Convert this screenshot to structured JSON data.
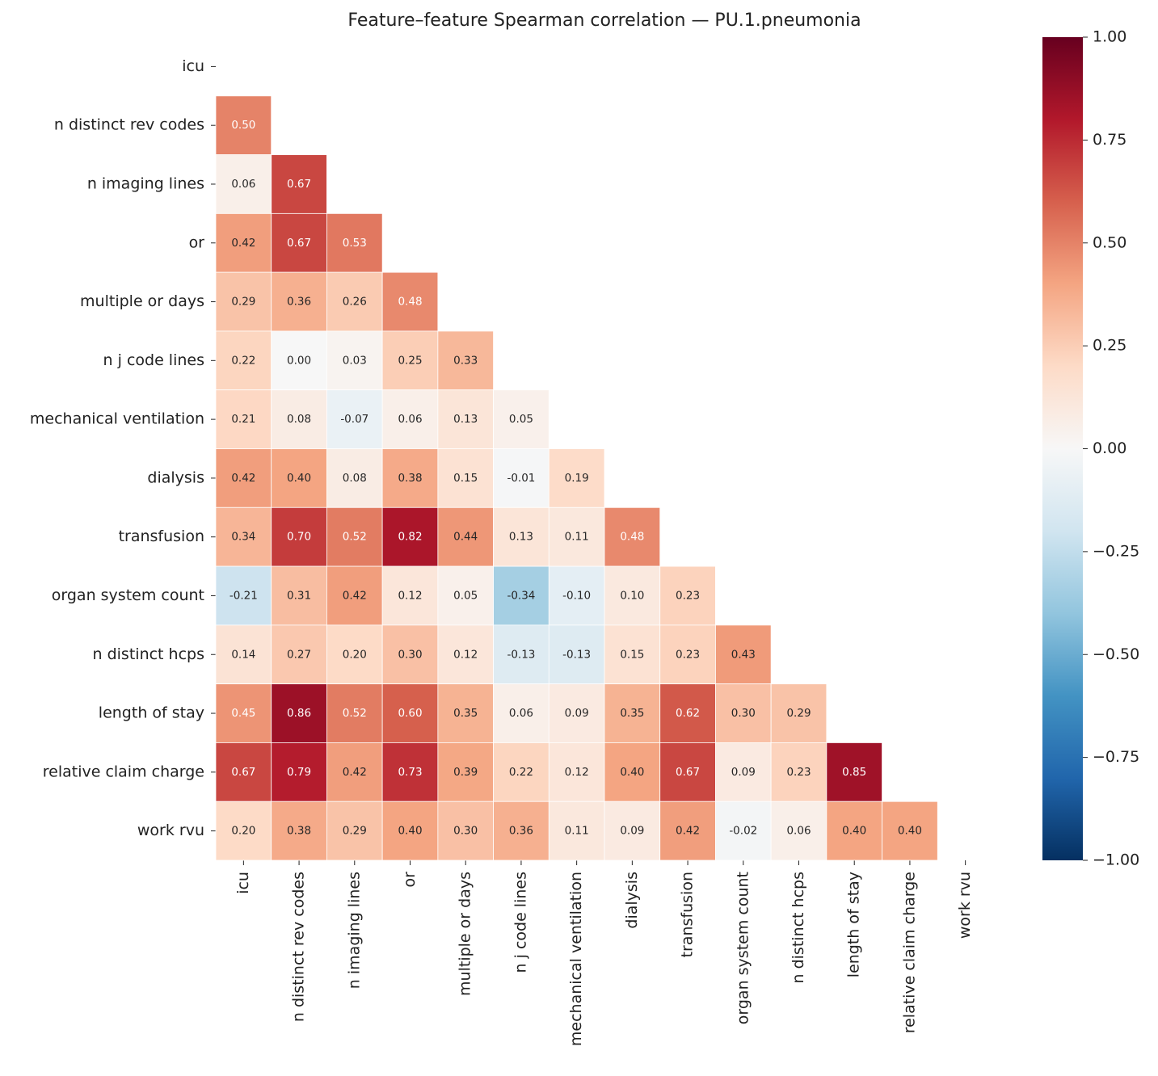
{
  "chart_data": {
    "type": "heatmap",
    "title": "Feature–feature Spearman correlation — PU.1.pneumonia",
    "categories": [
      "icu",
      "n distinct rev codes",
      "n imaging lines",
      "or",
      "multiple or days",
      "n j code lines",
      "mechanical ventilation",
      "dialysis",
      "transfusion",
      "organ system count",
      "n distinct hcps",
      "length of stay",
      "relative claim charge",
      "work rvu"
    ],
    "colormap": "RdBu_r",
    "zlim": [
      -1,
      1
    ],
    "zticks": [
      {
        "value": 1,
        "label": "1.00"
      },
      {
        "value": 0.75,
        "label": "0.75"
      },
      {
        "value": 0.5,
        "label": "0.50"
      },
      {
        "value": 0.25,
        "label": "0.25"
      },
      {
        "value": 0,
        "label": "0.00"
      },
      {
        "value": -0.25,
        "label": "−0.25"
      },
      {
        "value": -0.5,
        "label": "−0.50"
      },
      {
        "value": -0.75,
        "label": "−0.75"
      },
      {
        "value": -1,
        "label": "−1.00"
      }
    ],
    "values": [
      [
        null,
        null,
        null,
        null,
        null,
        null,
        null,
        null,
        null,
        null,
        null,
        null,
        null,
        null
      ],
      [
        0.5,
        null,
        null,
        null,
        null,
        null,
        null,
        null,
        null,
        null,
        null,
        null,
        null,
        null
      ],
      [
        0.06,
        0.67,
        null,
        null,
        null,
        null,
        null,
        null,
        null,
        null,
        null,
        null,
        null,
        null
      ],
      [
        0.42,
        0.67,
        0.53,
        null,
        null,
        null,
        null,
        null,
        null,
        null,
        null,
        null,
        null,
        null
      ],
      [
        0.29,
        0.36,
        0.26,
        0.48,
        null,
        null,
        null,
        null,
        null,
        null,
        null,
        null,
        null,
        null
      ],
      [
        0.22,
        0.0,
        0.03,
        0.25,
        0.33,
        null,
        null,
        null,
        null,
        null,
        null,
        null,
        null,
        null
      ],
      [
        0.21,
        0.08,
        -0.07,
        0.06,
        0.13,
        0.05,
        null,
        null,
        null,
        null,
        null,
        null,
        null,
        null
      ],
      [
        0.42,
        0.4,
        0.08,
        0.38,
        0.15,
        -0.01,
        0.19,
        null,
        null,
        null,
        null,
        null,
        null,
        null
      ],
      [
        0.34,
        0.7,
        0.52,
        0.82,
        0.44,
        0.13,
        0.11,
        0.48,
        null,
        null,
        null,
        null,
        null,
        null
      ],
      [
        -0.21,
        0.31,
        0.42,
        0.12,
        0.05,
        -0.34,
        -0.1,
        0.1,
        0.23,
        null,
        null,
        null,
        null,
        null
      ],
      [
        0.14,
        0.27,
        0.2,
        0.3,
        0.12,
        -0.13,
        -0.13,
        0.15,
        0.23,
        0.43,
        null,
        null,
        null,
        null
      ],
      [
        0.45,
        0.86,
        0.52,
        0.6,
        0.35,
        0.06,
        0.09,
        0.35,
        0.62,
        0.3,
        0.29,
        null,
        null,
        null
      ],
      [
        0.67,
        0.79,
        0.42,
        0.73,
        0.39,
        0.22,
        0.12,
        0.4,
        0.67,
        0.09,
        0.23,
        0.85,
        null,
        null
      ],
      [
        0.2,
        0.38,
        0.29,
        0.4,
        0.3,
        0.36,
        0.11,
        0.09,
        0.42,
        -0.02,
        0.06,
        0.4,
        0.4,
        null
      ]
    ],
    "value_labels": [
      [
        null,
        null,
        null,
        null,
        null,
        null,
        null,
        null,
        null,
        null,
        null,
        null,
        null,
        null
      ],
      [
        "0.50",
        null,
        null,
        null,
        null,
        null,
        null,
        null,
        null,
        null,
        null,
        null,
        null,
        null
      ],
      [
        "0.06",
        "0.67",
        null,
        null,
        null,
        null,
        null,
        null,
        null,
        null,
        null,
        null,
        null,
        null
      ],
      [
        "0.42",
        "0.67",
        "0.53",
        null,
        null,
        null,
        null,
        null,
        null,
        null,
        null,
        null,
        null,
        null
      ],
      [
        "0.29",
        "0.36",
        "0.26",
        "0.48",
        null,
        null,
        null,
        null,
        null,
        null,
        null,
        null,
        null,
        null
      ],
      [
        "0.22",
        "0.00",
        "0.03",
        "0.25",
        "0.33",
        null,
        null,
        null,
        null,
        null,
        null,
        null,
        null,
        null
      ],
      [
        "0.21",
        "0.08",
        "-0.07",
        "0.06",
        "0.13",
        "0.05",
        null,
        null,
        null,
        null,
        null,
        null,
        null,
        null
      ],
      [
        "0.42",
        "0.40",
        "0.08",
        "0.38",
        "0.15",
        "-0.01",
        "0.19",
        null,
        null,
        null,
        null,
        null,
        null,
        null
      ],
      [
        "0.34",
        "0.70",
        "0.52",
        "0.82",
        "0.44",
        "0.13",
        "0.11",
        "0.48",
        null,
        null,
        null,
        null,
        null,
        null
      ],
      [
        "-0.21",
        "0.31",
        "0.42",
        "0.12",
        "0.05",
        "-0.34",
        "-0.10",
        "0.10",
        "0.23",
        null,
        null,
        null,
        null,
        null
      ],
      [
        "0.14",
        "0.27",
        "0.20",
        "0.30",
        "0.12",
        "-0.13",
        "-0.13",
        "0.15",
        "0.23",
        "0.43",
        null,
        null,
        null,
        null
      ],
      [
        "0.45",
        "0.86",
        "0.52",
        "0.60",
        "0.35",
        "0.06",
        "0.09",
        "0.35",
        "0.62",
        "0.30",
        "0.29",
        null,
        null,
        null
      ],
      [
        "0.67",
        "0.79",
        "0.42",
        "0.73",
        "0.39",
        "0.22",
        "0.12",
        "0.40",
        "0.67",
        "0.09",
        "0.23",
        "0.85",
        null,
        null
      ],
      [
        "0.20",
        "0.38",
        "0.29",
        "0.40",
        "0.30",
        "0.36",
        "0.11",
        "0.09",
        "0.42",
        "-0.02",
        "0.06",
        "0.40",
        "0.40",
        null
      ]
    ]
  }
}
